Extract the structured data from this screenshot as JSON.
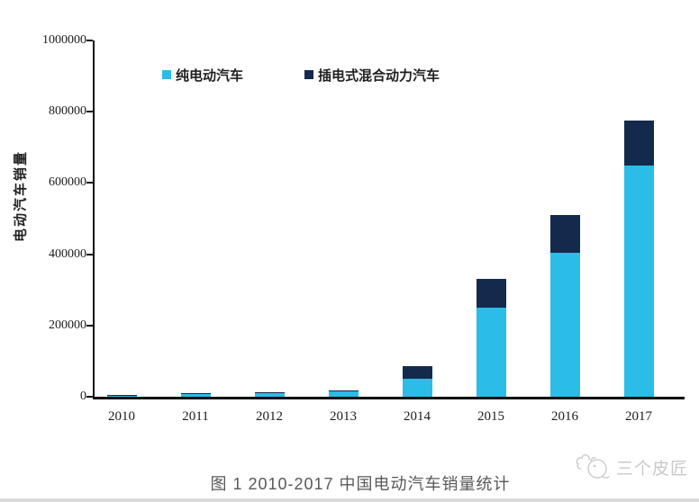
{
  "page": {
    "caption": "图 1 2010-2017 中国电动汽车销量统计",
    "watermark_text": "三个皮匠"
  },
  "colors": {
    "bev_blue": "#2bbce8",
    "phev_navy": "#132a4c",
    "axis": "#0d0d0d",
    "caption_gray": "#595959",
    "watermark_gray": "#c9c9c9"
  },
  "chart_data": {
    "type": "bar",
    "stacked": true,
    "title": "",
    "xlabel": "",
    "ylabel": "电动汽车销量",
    "categories": [
      "2010",
      "2011",
      "2012",
      "2013",
      "2014",
      "2015",
      "2016",
      "2017"
    ],
    "series": [
      {
        "name": "纯电动汽车",
        "color": "#2bbce8",
        "values": [
          2500,
          6500,
          10000,
          14500,
          50000,
          250000,
          405000,
          650000
        ]
      },
      {
        "name": "插电式混合动力汽车",
        "color": "#132a4c",
        "values": [
          3500,
          2500,
          3000,
          3500,
          35000,
          80000,
          105000,
          125000
        ]
      }
    ],
    "totals": [
      6000,
      9000,
      13000,
      18000,
      85000,
      330000,
      510000,
      775000
    ],
    "ylim": [
      0,
      1000000
    ],
    "yticks": [
      0,
      200000,
      400000,
      600000,
      800000,
      1000000
    ],
    "grid": false,
    "legend_position": "top-inside"
  }
}
